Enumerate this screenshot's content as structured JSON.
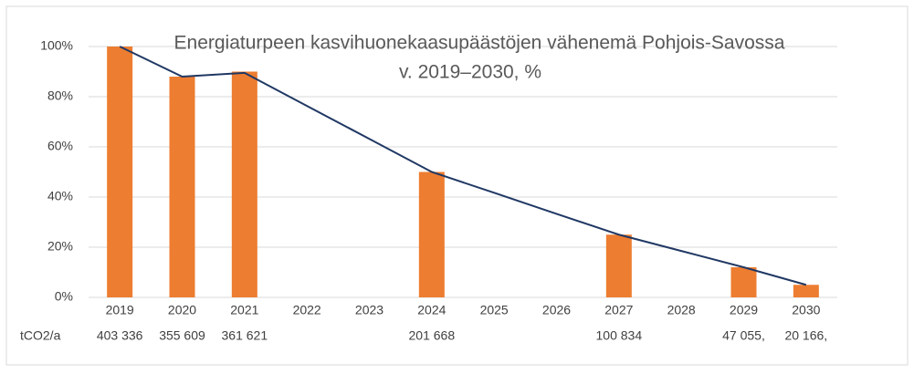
{
  "chart_data": {
    "type": "bar",
    "title": [
      "Energiaturpeen kasvihuonekaasupäästöjen vähenemä Pohjois-Savossa",
      "v. 2019–2030, %"
    ],
    "categories": [
      "2019",
      "2020",
      "2021",
      "2022",
      "2023",
      "2024",
      "2025",
      "2026",
      "2027",
      "2028",
      "2029",
      "2030"
    ],
    "series": [
      {
        "type": "bar",
        "color": "#ed7d31",
        "values": [
          100,
          88,
          90,
          null,
          null,
          50,
          null,
          null,
          25,
          null,
          12,
          5
        ]
      },
      {
        "type": "line",
        "color": "#203864",
        "values": [
          100,
          88,
          89.5,
          76.3,
          63.2,
          50,
          41.7,
          33.3,
          25,
          18.5,
          12,
          5
        ]
      }
    ],
    "ylim": [
      0,
      100
    ],
    "yticks": [
      {
        "value": 0,
        "label": "0%"
      },
      {
        "value": 20,
        "label": "20%"
      },
      {
        "value": 40,
        "label": "40%"
      },
      {
        "value": 60,
        "label": "60%"
      },
      {
        "value": 80,
        "label": "80%"
      },
      {
        "value": 100,
        "label": "100%"
      }
    ],
    "grid": true,
    "table_row": {
      "label": "tCO2/a",
      "values": [
        "403 336",
        "355 609",
        "361 621",
        null,
        null,
        "201 668",
        null,
        null,
        "100 834",
        null,
        "47 055,",
        "20 166,"
      ]
    }
  }
}
